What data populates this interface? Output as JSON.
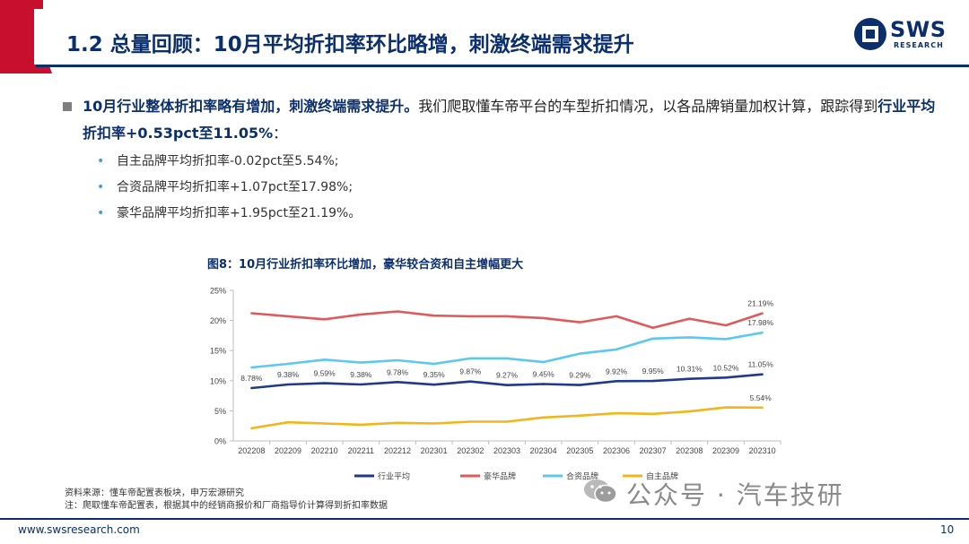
{
  "header": {
    "title": "1.2 总量回顾：10月平均折扣率环比略增，刺激终端需求提升",
    "logo_text": "SWS",
    "logo_sub": "RESEARCH"
  },
  "bullets": {
    "main_bold_1": "10月行业整体折扣率略有增加，刺激终端需求提升。",
    "main_text_1": "我们爬取懂车帝平台的车型折扣情况，以各品牌销量加权计算，跟踪得到",
    "main_bold_2": "行业平均折扣率+0.53pct至11.05%",
    "main_text_2": "：",
    "sub_items": [
      "自主品牌平均折扣率-0.02pct至5.54%;",
      "合资品牌平均折扣率+1.07pct至17.98%;",
      "豪华品牌平均折扣率+1.95pct至21.19%。"
    ]
  },
  "figure": {
    "title": "图8：10月行业折扣率环比增加，豪华较合资和自主增幅更大"
  },
  "chart_data": {
    "type": "line",
    "categories": [
      "202208",
      "202209",
      "202210",
      "202211",
      "202212",
      "202301",
      "202302",
      "202303",
      "202304",
      "202305",
      "202306",
      "202307",
      "202308",
      "202309",
      "202310"
    ],
    "ylim": [
      0,
      25
    ],
    "yticks": [
      "0%",
      "5%",
      "10%",
      "15%",
      "20%",
      "25%"
    ],
    "grid": false,
    "legend_position": "bottom",
    "series": [
      {
        "name": "行业平均",
        "color": "#1f3a8a",
        "values": [
          8.78,
          9.38,
          9.59,
          9.38,
          9.78,
          9.35,
          9.87,
          9.27,
          9.45,
          9.29,
          9.92,
          9.95,
          10.31,
          10.52,
          11.05
        ],
        "labels": [
          "8.78%",
          "9.38%",
          "9.59%",
          "9.38%",
          "9.78%",
          "9.35%",
          "9.87%",
          "9.27%",
          "9.45%",
          "9.29%",
          "9.92%",
          "9.95%",
          "10.31%",
          "10.52%",
          "11.05%"
        ]
      },
      {
        "name": "豪华品牌",
        "color": "#e05a5a",
        "values": [
          21.2,
          20.7,
          20.2,
          21.0,
          21.5,
          20.8,
          20.7,
          20.7,
          20.4,
          19.7,
          20.7,
          18.8,
          20.3,
          19.2,
          21.19
        ],
        "labels": [
          "",
          "",
          "",
          "",
          "",
          "",
          "",
          "",
          "",
          "",
          "",
          "",
          "",
          "",
          "21.19%"
        ]
      },
      {
        "name": "合资品牌",
        "color": "#5bc8f0",
        "values": [
          12.2,
          12.8,
          13.5,
          13.0,
          13.4,
          12.8,
          13.7,
          13.7,
          13.1,
          14.5,
          15.2,
          17.0,
          17.2,
          16.9,
          17.98
        ],
        "labels": [
          "",
          "",
          "",
          "",
          "",
          "",
          "",
          "",
          "",
          "",
          "",
          "",
          "",
          "",
          "17.98%"
        ]
      },
      {
        "name": "自主品牌",
        "color": "#f2b51c",
        "values": [
          2.1,
          3.1,
          2.9,
          2.7,
          3.0,
          2.9,
          3.2,
          3.2,
          3.9,
          4.2,
          4.6,
          4.5,
          4.9,
          5.56,
          5.54
        ],
        "labels": [
          "",
          "",
          "",
          "",
          "",
          "",
          "",
          "",
          "",
          "",
          "",
          "",
          "",
          "",
          "5.54%"
        ]
      }
    ]
  },
  "source": {
    "line1": "资料来源：懂车帝配置表板块，申万宏源研究",
    "line2": "注：爬取懂车帝配置表，根据其中的经销商报价和厂商指导价计算得到折扣率数据"
  },
  "watermark": {
    "text": "公众号 · 汽车技研"
  },
  "footer": {
    "url": "www.swsresearch.com",
    "page": "10"
  },
  "colors": {
    "brand_navy": "#0b2f6d",
    "brand_red": "#c8102e"
  }
}
